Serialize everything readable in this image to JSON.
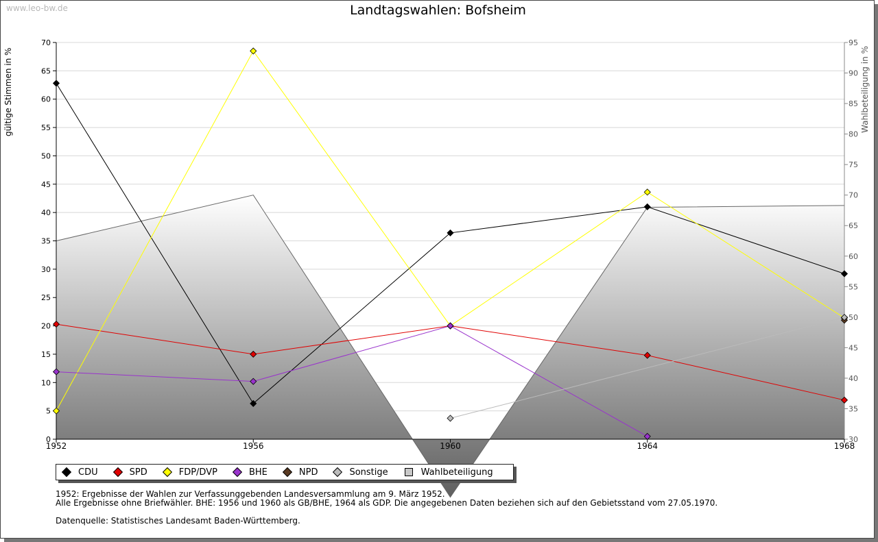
{
  "watermark": "www.leo-bw.de",
  "title": "Landtagswahlen: Bofsheim",
  "ylabel_left": "gültige Stimmen in %",
  "ylabel_right": "Wahlbeteiligung in %",
  "notes": {
    "line1": "1952: Ergebnisse der Wahlen zur Verfassunggebenden Landesversammlung am 9. März 1952.",
    "line2": "Alle Ergebnisse ohne Briefwähler. BHE: 1956 und 1960 als GB/BHE, 1964 als GDP. Die angegebenen Daten beziehen sich auf den Gebietsstand vom 27.05.1970.",
    "line3": "Datenquelle: Statistisches Landesamt Baden-Württemberg."
  },
  "chart_data": {
    "type": "line",
    "title": "Landtagswahlen: Bofsheim",
    "xlabel": "",
    "ylabel": "gültige Stimmen in %",
    "y2label": "Wahlbeteiligung in %",
    "x": [
      1952,
      1956,
      1960,
      1964,
      1968
    ],
    "xticks": [
      "1952",
      "1956",
      "1960",
      "1964",
      "1968"
    ],
    "ylim": [
      0,
      70
    ],
    "yticks": [
      0,
      5,
      10,
      15,
      20,
      25,
      30,
      35,
      40,
      45,
      50,
      55,
      60,
      65,
      70
    ],
    "y2lim": [
      30,
      95
    ],
    "y2ticks": [
      30,
      35,
      40,
      45,
      50,
      55,
      60,
      65,
      70,
      75,
      80,
      85,
      90,
      95
    ],
    "legend_position": "bottom",
    "grid": true,
    "series": [
      {
        "name": "CDU",
        "color": "#000000",
        "values": [
          62.8,
          6.3,
          36.4,
          41.0,
          29.2
        ]
      },
      {
        "name": "SPD",
        "color": "#e00000",
        "values": [
          20.3,
          15.0,
          20.0,
          14.8,
          6.9
        ]
      },
      {
        "name": "FDP/DVP",
        "color": "#ffff00",
        "values": [
          5.0,
          68.5,
          20.0,
          43.6,
          21.4
        ]
      },
      {
        "name": "BHE",
        "color": "#9933cc",
        "values": [
          11.9,
          10.2,
          20.0,
          0.5,
          null
        ]
      },
      {
        "name": "NPD",
        "color": "#5a3a22",
        "values": [
          null,
          null,
          null,
          null,
          21.0
        ]
      },
      {
        "name": "Sonstige",
        "color": "#bbbbbb",
        "values": [
          null,
          null,
          3.7,
          null,
          21.5
        ]
      },
      {
        "name": "Wahlbeteiligung",
        "color": "#c8c8c8",
        "axis": "right",
        "type": "area",
        "values": [
          62.5,
          70.0,
          20.5,
          68.0,
          68.3
        ]
      }
    ]
  }
}
